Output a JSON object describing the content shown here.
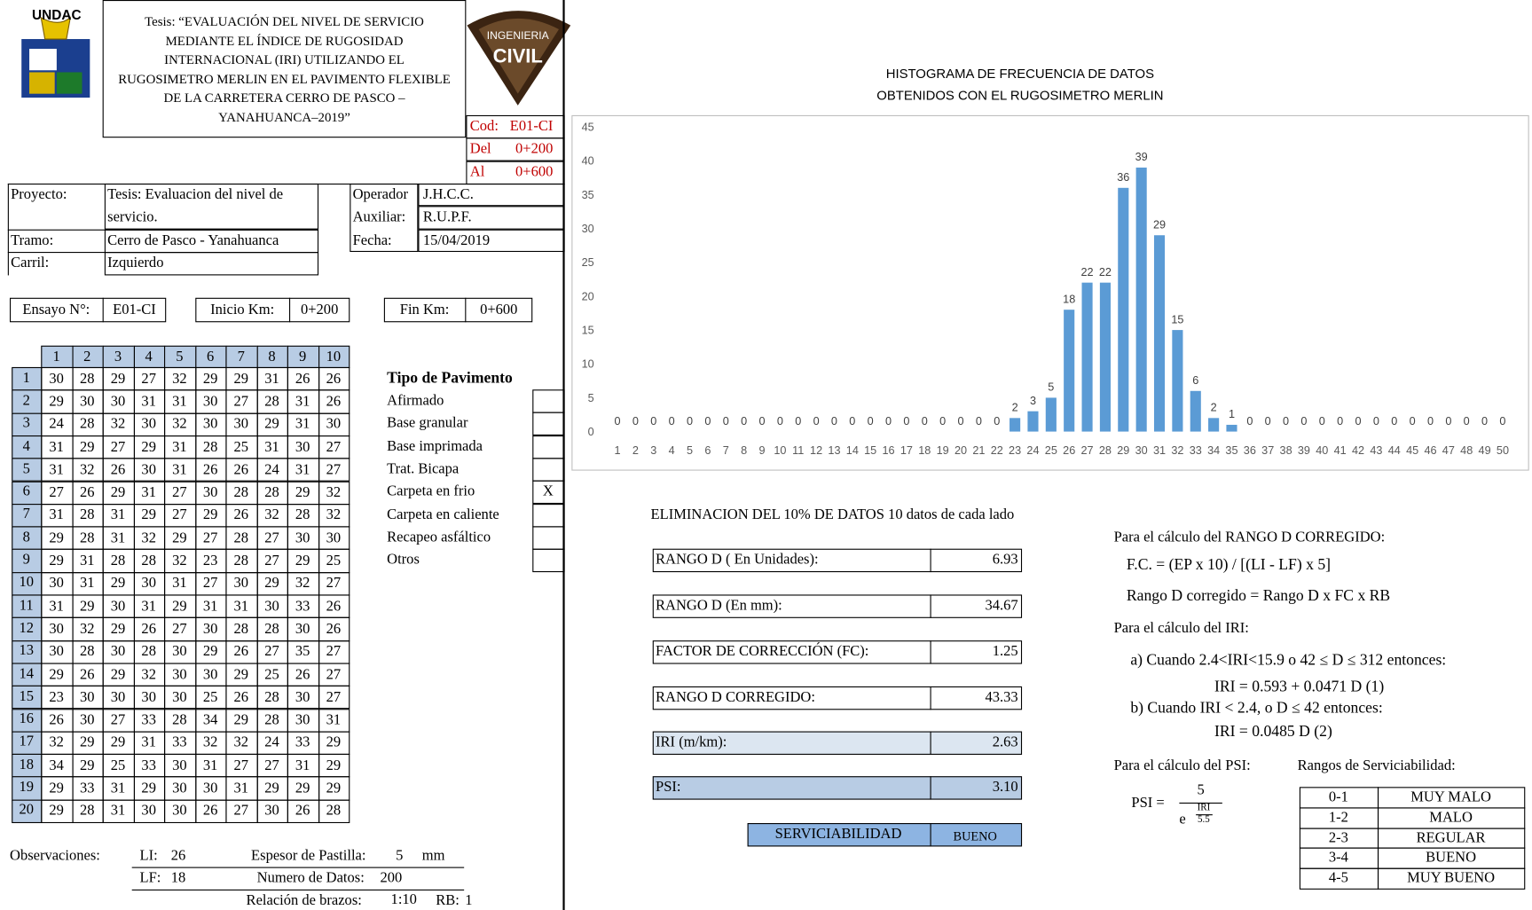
{
  "header": {
    "logo_left_text": "UNDAC",
    "logo_right_top": "INGENIERIA",
    "logo_right_main": "CIVIL",
    "title_lines": [
      "Tesis: “EVALUACIÓN DEL NIVEL DE SERVICIO",
      "MEDIANTE EL ÍNDICE DE RUGOSIDAD",
      "INTERNACIONAL (IRI) UTILIZANDO EL",
      "RUGOSIMETRO MERLIN EN EL PAVIMENTO FLEXIBLE",
      "DE LA CARRETERA CERRO DE PASCO –",
      "YANAHUANCA–2019”"
    ],
    "codes": [
      {
        "label": "Cod:",
        "value": "E01-CI"
      },
      {
        "label": "Del",
        "value": "0+200"
      },
      {
        "label": "Al",
        "value": "0+600"
      }
    ]
  },
  "info": {
    "proyecto": {
      "label": "Proyecto:",
      "lines": [
        "Tesis: Evaluacion del nivel de",
        "servicio."
      ]
    },
    "tramo": {
      "label": "Tramo:",
      "value": "Cerro de Pasco - Yanahuanca"
    },
    "carril": {
      "label": "Carril:",
      "value": "Izquierdo"
    },
    "operador": {
      "label": "Operador",
      "value": "J.H.C.C."
    },
    "auxiliar": {
      "label": "Auxiliar:",
      "value": "R.U.P.F."
    },
    "fecha": {
      "label": "Fecha:",
      "value": "15/04/2019"
    }
  },
  "test": {
    "ensayo": {
      "label": "Ensayo N°:",
      "value": "E01-CI"
    },
    "inicio": {
      "label": "Inicio Km:",
      "value": "0+200"
    },
    "fin": {
      "label": "Fin Km:",
      "value": "0+600"
    }
  },
  "table": {
    "col_headers": [
      "1",
      "2",
      "3",
      "4",
      "5",
      "6",
      "7",
      "8",
      "9",
      "10"
    ],
    "row_headers": [
      "1",
      "2",
      "3",
      "4",
      "5",
      "6",
      "7",
      "8",
      "9",
      "10",
      "11",
      "12",
      "13",
      "14",
      "15",
      "16",
      "17",
      "18",
      "19",
      "20"
    ],
    "rows": [
      [
        "30",
        "28",
        "29",
        "27",
        "32",
        "29",
        "29",
        "31",
        "26",
        "26"
      ],
      [
        "29",
        "30",
        "30",
        "31",
        "31",
        "30",
        "27",
        "28",
        "31",
        "26"
      ],
      [
        "24",
        "28",
        "32",
        "30",
        "32",
        "30",
        "30",
        "29",
        "31",
        "30"
      ],
      [
        "31",
        "29",
        "27",
        "29",
        "31",
        "28",
        "25",
        "31",
        "30",
        "27"
      ],
      [
        "31",
        "32",
        "26",
        "30",
        "31",
        "26",
        "26",
        "24",
        "31",
        "27"
      ],
      [
        "27",
        "26",
        "29",
        "31",
        "27",
        "30",
        "28",
        "28",
        "29",
        "32"
      ],
      [
        "31",
        "28",
        "31",
        "29",
        "27",
        "29",
        "26",
        "32",
        "28",
        "32"
      ],
      [
        "29",
        "28",
        "31",
        "32",
        "29",
        "27",
        "28",
        "27",
        "30",
        "30"
      ],
      [
        "29",
        "31",
        "28",
        "28",
        "32",
        "23",
        "28",
        "27",
        "29",
        "25"
      ],
      [
        "30",
        "31",
        "29",
        "30",
        "31",
        "27",
        "30",
        "29",
        "32",
        "27"
      ],
      [
        "31",
        "29",
        "30",
        "31",
        "29",
        "31",
        "31",
        "30",
        "33",
        "26"
      ],
      [
        "30",
        "32",
        "29",
        "26",
        "27",
        "30",
        "28",
        "28",
        "30",
        "26"
      ],
      [
        "30",
        "28",
        "30",
        "28",
        "30",
        "29",
        "26",
        "27",
        "35",
        "27"
      ],
      [
        "29",
        "26",
        "29",
        "32",
        "30",
        "30",
        "29",
        "25",
        "26",
        "27"
      ],
      [
        "23",
        "30",
        "30",
        "30",
        "30",
        "25",
        "26",
        "28",
        "30",
        "27"
      ],
      [
        "26",
        "30",
        "27",
        "33",
        "28",
        "34",
        "29",
        "28",
        "30",
        "31"
      ],
      [
        "32",
        "29",
        "29",
        "31",
        "33",
        "32",
        "32",
        "24",
        "33",
        "29"
      ],
      [
        "34",
        "29",
        "25",
        "33",
        "30",
        "31",
        "27",
        "27",
        "31",
        "29"
      ],
      [
        "29",
        "33",
        "31",
        "29",
        "30",
        "30",
        "31",
        "29",
        "29",
        "29"
      ],
      [
        "29",
        "28",
        "31",
        "30",
        "30",
        "26",
        "27",
        "30",
        "26",
        "28"
      ]
    ]
  },
  "pavement": {
    "title": "Tipo de Pavimento",
    "items": [
      {
        "name": "Afirmado"
      },
      {
        "name": "Base granular"
      },
      {
        "name": "Base imprimada"
      },
      {
        "name": "Trat. Bicapa"
      },
      {
        "name": "Carpeta en frio",
        "mark": "X"
      },
      {
        "name": "Carpeta en caliente"
      },
      {
        "name": "Recapeo asfáltico"
      },
      {
        "name": "Otros"
      }
    ]
  },
  "observations": {
    "label": "Observaciones:",
    "li_label": "LI:",
    "li_value": "26",
    "espesor_label": "Espesor de Pastilla:",
    "espesor_value": "5",
    "espesor_unit": "mm",
    "lf_label": "LF:",
    "lf_value": "18",
    "numero_label": "Numero de Datos:",
    "numero_value": "200",
    "relacion_label": "Relación de brazos:",
    "relacion_value": "1:10",
    "rb_label": "RB:",
    "rb_value": "1"
  },
  "chart_data": {
    "type": "bar",
    "title_lines": [
      "HISTOGRAMA DE FRECUENCIA DE DATOS",
      "OBTENIDOS CON EL RUGOSIMETRO MERLIN"
    ],
    "categories": [
      1,
      2,
      3,
      4,
      5,
      6,
      7,
      8,
      9,
      10,
      11,
      12,
      13,
      14,
      15,
      16,
      17,
      18,
      19,
      20,
      21,
      22,
      23,
      24,
      25,
      26,
      27,
      28,
      29,
      30,
      31,
      32,
      33,
      34,
      35,
      36,
      37,
      38,
      39,
      40,
      41,
      42,
      43,
      44,
      45,
      46,
      47,
      48,
      49,
      50
    ],
    "values": [
      0,
      0,
      0,
      0,
      0,
      0,
      0,
      0,
      0,
      0,
      0,
      0,
      0,
      0,
      0,
      0,
      0,
      0,
      0,
      0,
      0,
      0,
      2,
      3,
      5,
      18,
      22,
      22,
      36,
      39,
      29,
      15,
      6,
      2,
      1,
      0,
      0,
      0,
      0,
      0,
      0,
      0,
      0,
      0,
      0,
      0,
      0,
      0,
      0,
      0
    ],
    "color": "#5b9bd5",
    "ylim": [
      0,
      45
    ],
    "yticks": [
      0,
      5,
      10,
      15,
      20,
      25,
      30,
      35,
      40,
      45
    ],
    "grid": false
  },
  "results": {
    "heading": "ELIMINACION DEL 10%  DE DATOS 10 datos de cada lado",
    "items": [
      {
        "label": "RANGO D ( En Unidades):",
        "value": "6.93"
      },
      {
        "label": "RANGO D (En mm):",
        "value": "34.67"
      },
      {
        "label": "FACTOR DE CORRECCIÓN (FC):",
        "value": "1.25"
      },
      {
        "label": "RANGO D CORREGIDO:",
        "value": "43.33"
      },
      {
        "label": "IRI (m/km):",
        "value": "2.63"
      },
      {
        "label": "PSI:",
        "value": "3.10"
      }
    ],
    "serviciabilidad": {
      "label": "SERVICIABILIDAD",
      "value": "BUENO"
    }
  },
  "formulas": {
    "rango_heading": "Para el cálculo del RANGO D CORREGIDO:",
    "fc": "F.C. = (EP x 10) / [(LI - LF) x 5]",
    "rango": "Rango D corregido = Rango D x FC x RB",
    "iri_heading": "Para el cálculo del IRI:",
    "iri_a": "a)  Cuando 2.4<IRI<15.9 o 42 ≤ D ≤ 312 entonces:",
    "iri_a_formula": "IRI = 0.593 + 0.0471 D (1)",
    "iri_b": "b)  Cuando IRI < 2.4, o D ≤ 42 entonces:",
    "iri_b_formula": "IRI = 0.0485 D (2)",
    "psi_heading": "Para el cálculo del PSI:",
    "psi_lhs": "PSI =",
    "psi_num": "5",
    "psi_base": "e",
    "psi_exp_num": "IRI",
    "psi_exp_den": "5.5"
  },
  "ranges": {
    "title": "Rangos de Serviciabilidad:",
    "rows": [
      [
        "0-1",
        "MUY MALO"
      ],
      [
        "1-2",
        "MALO"
      ],
      [
        "2-3",
        "REGULAR"
      ],
      [
        "3-4",
        "BUENO"
      ],
      [
        "4-5",
        "MUY BUENO"
      ]
    ]
  }
}
